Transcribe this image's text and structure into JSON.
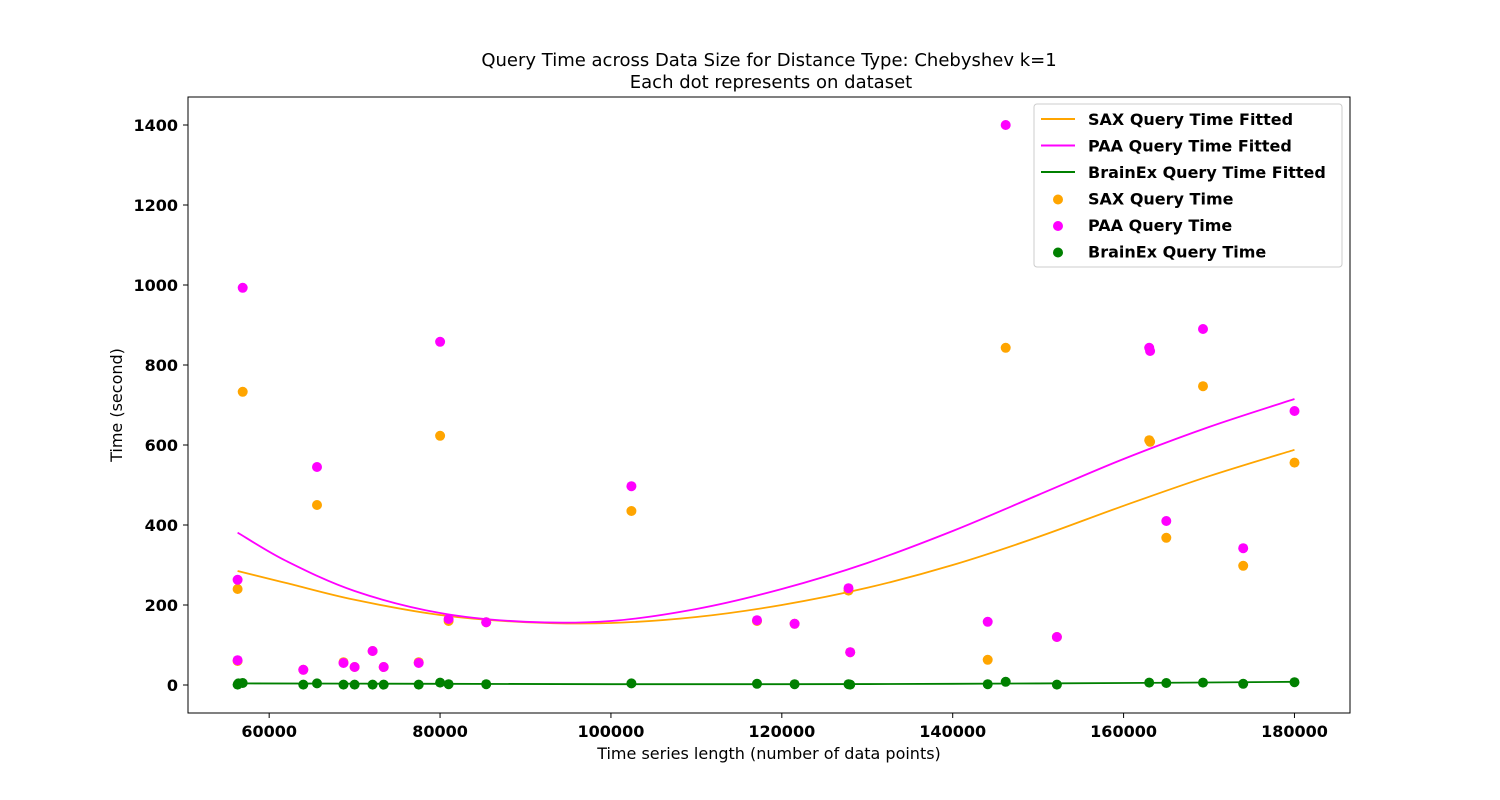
{
  "chart_data": {
    "type": "scatter",
    "title": "Query Time across Data Size for Distance Type: Chebyshev k=1",
    "subtitle": "Each dot represents on dataset",
    "xlabel": "Time series length (number of data points)",
    "ylabel": "Time (second)",
    "xlim": [
      50500,
      186500
    ],
    "ylim": [
      -70,
      1470
    ],
    "xticks": [
      60000,
      80000,
      100000,
      120000,
      140000,
      160000,
      180000
    ],
    "yticks": [
      0,
      200,
      400,
      600,
      800,
      1000,
      1200,
      1400
    ],
    "grid": false,
    "legend_position": "top-right",
    "fitted_series": [
      {
        "name": "SAX Query Time Fitted",
        "color": "#ffa500",
        "x": [
          56300,
          62000,
          70000,
          80000,
          90000,
          100000,
          110000,
          120000,
          130000,
          140000,
          150000,
          160000,
          170000,
          180000
        ],
        "y": [
          285,
          255,
          213,
          175,
          157,
          155,
          170,
          200,
          243,
          300,
          370,
          448,
          522,
          588
        ]
      },
      {
        "name": "PAA Query Time Fitted",
        "color": "#ff00ff",
        "x": [
          56300,
          62000,
          70000,
          80000,
          90000,
          100000,
          110000,
          120000,
          130000,
          140000,
          150000,
          160000,
          170000,
          180000
        ],
        "y": [
          381,
          310,
          235,
          180,
          158,
          160,
          190,
          240,
          305,
          385,
          475,
          565,
          645,
          715
        ]
      },
      {
        "name": "BrainEx Query Time Fitted",
        "color": "#008000",
        "x": [
          56300,
          80000,
          100000,
          120000,
          140000,
          160000,
          180000
        ],
        "y": [
          4,
          3,
          2,
          2,
          3,
          5,
          8
        ]
      }
    ],
    "scatter_series": [
      {
        "name": "SAX Query Time",
        "color": "#ffa500",
        "x": [
          56300,
          56300,
          56900,
          64000,
          65600,
          68700,
          70000,
          72100,
          73400,
          77500,
          80000,
          81000,
          85400,
          102400,
          117100,
          121500,
          127800,
          128000,
          144100,
          146200,
          152200,
          163000,
          163100,
          165000,
          169300,
          174000,
          180000
        ],
        "y": [
          240,
          60,
          733,
          38,
          450,
          57,
          45,
          85,
          45,
          57,
          623,
          160,
          157,
          435,
          160,
          153,
          236,
          82,
          63,
          843,
          120,
          612,
          608,
          368,
          747,
          298,
          556
        ]
      },
      {
        "name": "PAA Query Time",
        "color": "#ff00ff",
        "x": [
          56300,
          56300,
          56900,
          64000,
          65600,
          68700,
          70000,
          72100,
          73400,
          77500,
          80000,
          81000,
          85400,
          102400,
          117100,
          121500,
          127800,
          128000,
          144100,
          146200,
          152200,
          163000,
          163100,
          165000,
          169300,
          174000,
          180000
        ],
        "y": [
          263,
          62,
          993,
          38,
          545,
          55,
          45,
          85,
          45,
          55,
          858,
          165,
          157,
          497,
          162,
          153,
          242,
          82,
          158,
          1400,
          120,
          843,
          835,
          410,
          890,
          342,
          685
        ]
      },
      {
        "name": "BrainEx Query Time",
        "color": "#008000",
        "x": [
          56300,
          56400,
          56900,
          64000,
          65600,
          68700,
          70000,
          72100,
          73400,
          77500,
          80000,
          81000,
          85400,
          102400,
          117100,
          121500,
          127800,
          128000,
          144100,
          146200,
          152200,
          163000,
          165000,
          169300,
          174000,
          180000
        ],
        "y": [
          1,
          4,
          5,
          1,
          4,
          1,
          1,
          1,
          1,
          1,
          6,
          2,
          2,
          4,
          3,
          2,
          2,
          1,
          2,
          8,
          1,
          6,
          5,
          6,
          3,
          7
        ]
      }
    ]
  }
}
